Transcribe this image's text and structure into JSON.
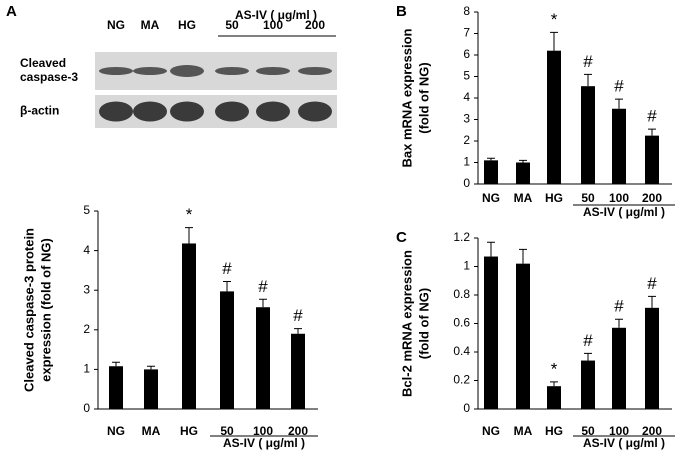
{
  "blot": {
    "panel_label": "A",
    "columns": [
      "NG",
      "MA",
      "HG",
      "50",
      "100",
      "200"
    ],
    "group_label": "AS-IV ( μg/ml )",
    "rows": [
      [
        "Cleaved",
        "caspase-3"
      ],
      [
        "β-actin"
      ]
    ]
  },
  "chart_data": [
    {
      "type": "bar",
      "ylabel": [
        "Cleaved caspase-3 protein",
        "expression (fold of NG)"
      ],
      "categories": [
        "NG",
        "MA",
        "HG",
        "50",
        "100",
        "200"
      ],
      "group_label": "AS-IV ( μg/ml )",
      "values": [
        1.08,
        1.0,
        4.18,
        2.97,
        2.57,
        1.9
      ],
      "errors": [
        0.1,
        0.08,
        0.4,
        0.25,
        0.2,
        0.13
      ],
      "annotations": [
        null,
        null,
        "*",
        "#",
        "#",
        "#"
      ],
      "color": "#000000",
      "ylim": [
        0,
        5
      ],
      "yticks": [
        0,
        1,
        2,
        3,
        4,
        5
      ]
    },
    {
      "type": "bar",
      "panel_label": "B",
      "ylabel": [
        "Bax mRNA expression",
        "(fold of NG)"
      ],
      "categories": [
        "NG",
        "MA",
        "HG",
        "50",
        "100",
        "200"
      ],
      "group_label": "AS-IV ( μg/ml )",
      "values": [
        1.1,
        1.0,
        6.2,
        4.55,
        3.5,
        2.25
      ],
      "errors": [
        0.1,
        0.1,
        0.85,
        0.55,
        0.45,
        0.3
      ],
      "annotations": [
        null,
        null,
        "*",
        "#",
        "#",
        "#"
      ],
      "color": "#000000",
      "ylim": [
        0,
        8
      ],
      "yticks": [
        0,
        1,
        2,
        3,
        4,
        5,
        6,
        7,
        8
      ]
    },
    {
      "type": "bar",
      "panel_label": "C",
      "ylabel": [
        "Bcl-2 mRNA expression",
        "(fold of NG)"
      ],
      "categories": [
        "NG",
        "MA",
        "HG",
        "50",
        "100",
        "200"
      ],
      "group_label": "AS-IV ( μg/ml )",
      "values": [
        1.07,
        1.02,
        0.16,
        0.34,
        0.57,
        0.71
      ],
      "errors": [
        0.1,
        0.1,
        0.03,
        0.05,
        0.06,
        0.08
      ],
      "annotations": [
        null,
        null,
        "*",
        "#",
        "#",
        "#"
      ],
      "color": "#000000",
      "ylim": [
        0,
        1.2
      ],
      "yticks": [
        0,
        0.2,
        0.4,
        0.6,
        0.8,
        1,
        1.2
      ]
    }
  ]
}
